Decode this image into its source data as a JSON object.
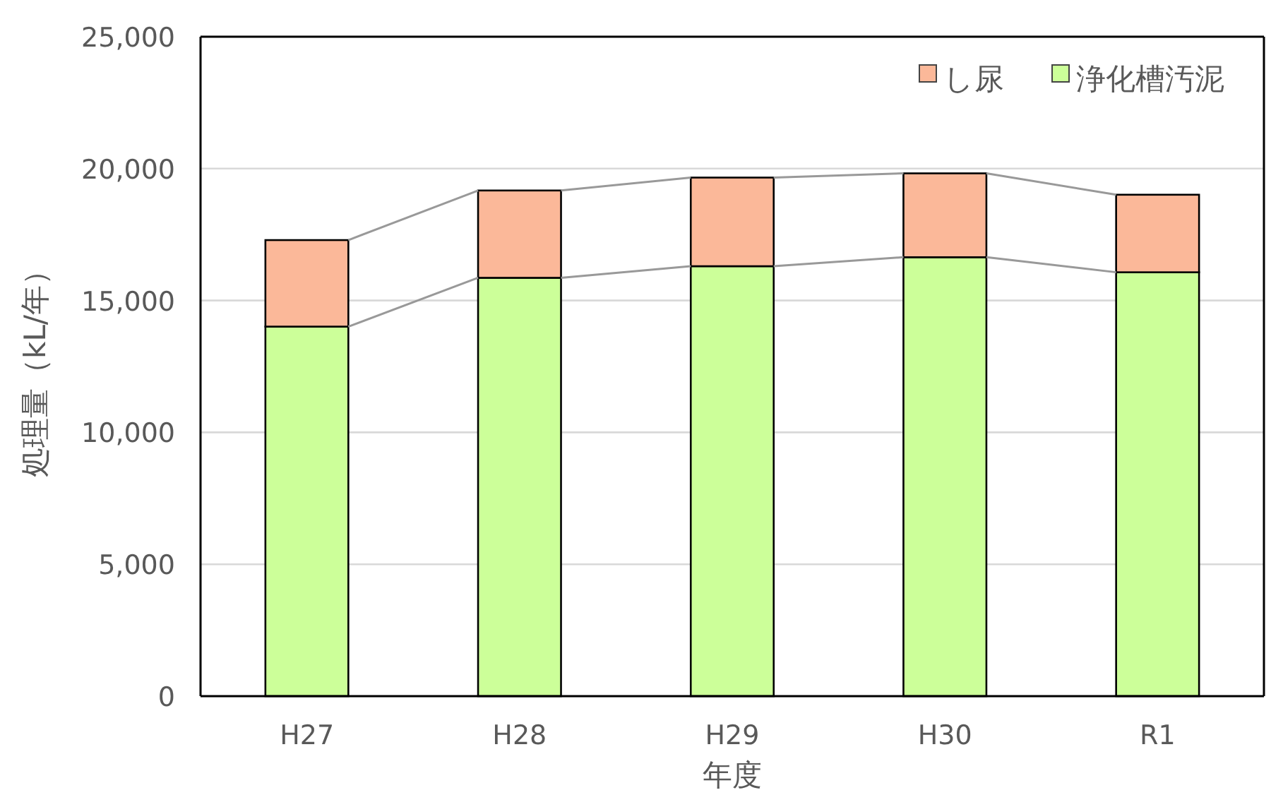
{
  "chart_data": {
    "type": "bar",
    "stacked": true,
    "xlabel": "年度",
    "ylabel": "処理量（kL/年）",
    "categories": [
      "H27",
      "H28",
      "H29",
      "H30",
      "R1"
    ],
    "series": [
      {
        "name": "浄化槽汚泥",
        "color": "#ccff99",
        "values": [
          14010,
          15860,
          16300,
          16640,
          16070
        ]
      },
      {
        "name": "し尿",
        "color": "#fbb899",
        "values": [
          3280,
          3310,
          3360,
          3180,
          2940
        ]
      }
    ],
    "ylim": [
      0,
      25000
    ],
    "yticks": [
      {
        "value": 0,
        "label": "0"
      },
      {
        "value": 5000,
        "label": "5,000"
      },
      {
        "value": 10000,
        "label": "10,000"
      },
      {
        "value": 15000,
        "label": "15,000"
      },
      {
        "value": 20000,
        "label": "20,000"
      },
      {
        "value": 25000,
        "label": "25,000"
      }
    ],
    "grid": "y",
    "legend": "top right"
  }
}
